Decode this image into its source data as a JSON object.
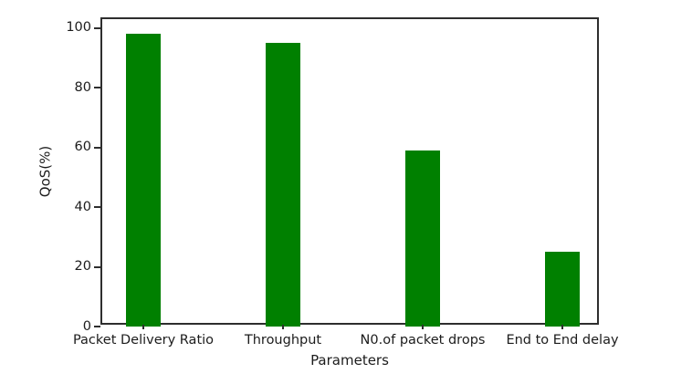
{
  "figure": {
    "background": "#ffffff"
  },
  "chart_data": {
    "type": "bar",
    "title": "",
    "categories": [
      "Packet Delivery Ratio",
      "Throughput",
      "N0.of packet drops",
      "End to End delay"
    ],
    "values": [
      98,
      95,
      59,
      25
    ],
    "xlabel": "Parameters",
    "ylabel": "QoS(%)",
    "ylim": [
      0,
      103
    ],
    "yticks": [
      0,
      20,
      40,
      60,
      80,
      100
    ],
    "bar_color": "#008000",
    "axis_color": "#2e2e2e",
    "text_color": "#1c1c1c",
    "grid": false,
    "legend": "none"
  }
}
